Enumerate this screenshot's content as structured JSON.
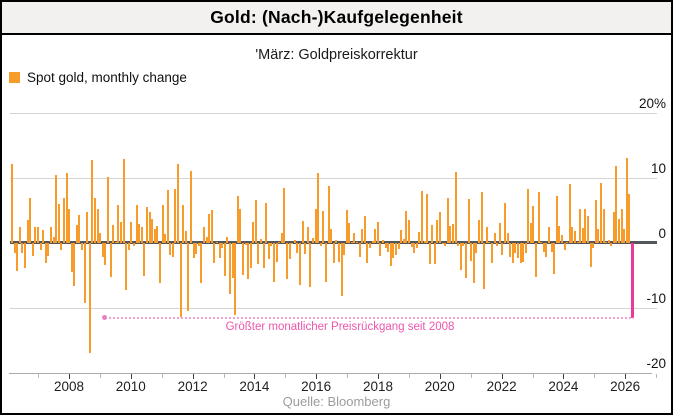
{
  "header": {
    "title": "Gold: (Nach-)Kaufgelegenheit",
    "subtitle": "'März: Goldpreiskorrektur"
  },
  "legend": {
    "label": "Spot gold, monthly change"
  },
  "annotation": {
    "text": "Größter monatlicher Preisrückgang seit 2008",
    "level_pct": -11.6
  },
  "source": {
    "label": "Quelle: Bloomberg"
  },
  "colors": {
    "bar_orange": "#f79b2a",
    "bar_highlight_magenta": "#ea3a9c",
    "annotation_pink": "#ee55ac",
    "dotted_line_pink": "#f0a2d2",
    "zero_line": "#53565a",
    "gridline": "#d4d4d4",
    "title_band_bg": "#f2f1ef",
    "source_gray": "#9c9c9c"
  },
  "chart_data": {
    "type": "bar",
    "title": "Gold: (Nach-)Kaufgelegenheit",
    "subtitle": "'März: Goldpreiskorrektur",
    "series_name": "Spot gold, monthly change",
    "unit": "percent monthly change",
    "grid": "horizontal",
    "legend_position": "top-left",
    "axis_side": "right",
    "ylim": [
      -20,
      20
    ],
    "y_ticks": [
      {
        "label": "20%",
        "value": 20
      },
      {
        "label": "10",
        "value": 10
      },
      {
        "label": "0",
        "value": 0
      },
      {
        "label": "-10",
        "value": -10
      },
      {
        "label": "-20",
        "value": -20
      }
    ],
    "x_tick_years_labeled": [
      2008,
      2010,
      2012,
      2014,
      2016,
      2018,
      2020,
      2022,
      2024,
      2026
    ],
    "x_tick_years_minor": [
      2007,
      2009,
      2011,
      2013,
      2015,
      2017,
      2019,
      2021,
      2023,
      2025,
      2027
    ],
    "start_month": "2006-04",
    "end_month": "2026-03",
    "highlight": {
      "month": "2026-03",
      "index": 239,
      "value": -11.6,
      "note": "Größter monatlicher Preisrückgang seit 2008"
    },
    "annotation_line": {
      "level_pct": -11.6,
      "start_index": 36
    },
    "values": [
      12.2,
      -1.6,
      -4.3,
      2.4,
      -1.5,
      -3.9,
      3.6,
      6.9,
      -2.0,
      2.4,
      2.4,
      -1.0,
      2.0,
      -3.0,
      -2.0,
      2.4,
      1.0,
      10.4,
      6.0,
      -1.0,
      6.9,
      10.8,
      5.2,
      -4.4,
      -6.6,
      2.7,
      4.3,
      -1.0,
      -9.2,
      4.7,
      -16.9,
      12.8,
      7.0,
      5.3,
      1.5,
      -2.2,
      -3.4,
      10.1,
      -5.3,
      2.7,
      0.2,
      5.9,
      3.2,
      12.9,
      -7.2,
      -1.1,
      3.3,
      -0.4,
      5.9,
      3.0,
      2.4,
      -5.0,
      5.6,
      4.8,
      3.7,
      2.1,
      2.6,
      -6.2,
      5.9,
      1.4,
      8.1,
      -1.9,
      -2.2,
      8.3,
      12.2,
      -11.3,
      5.8,
      1.9,
      -10.5,
      11.1,
      -2.3,
      -1.7,
      -0.5,
      -6.2,
      2.5,
      1.0,
      4.5,
      5.1,
      -3.1,
      0.2,
      -2.3,
      -0.7,
      -5.1,
      1.0,
      -7.8,
      -5.4,
      -11.0,
      7.3,
      5.3,
      -4.9,
      -0.3,
      -5.5,
      -3.8,
      3.2,
      6.6,
      -3.2,
      0.6,
      -3.9,
      6.1,
      -2.4,
      -0.4,
      -6.0,
      -2.9,
      0.1,
      1.5,
      8.4,
      -5.5,
      -2.4,
      -0.1,
      0.5,
      -1.5,
      -6.5,
      3.4,
      -1.7,
      2.4,
      -6.8,
      0.7,
      5.3,
      10.8,
      -0.5,
      4.9,
      -6.0,
      8.8,
      2.2,
      -3.1,
      0.5,
      -2.9,
      -8.1,
      -1.8,
      5.1,
      3.1,
      0.1,
      1.6,
      0.0,
      -2.1,
      2.2,
      4.1,
      -3.1,
      -0.7,
      0.3,
      2.2,
      3.2,
      -2.0,
      0.5,
      -0.7,
      -1.3,
      -3.5,
      -2.3,
      -1.9,
      -0.9,
      2.0,
      0.6,
      4.9,
      3.5,
      -0.6,
      -1.6,
      -0.7,
      1.7,
      8.0,
      0.3,
      7.5,
      -3.2,
      2.8,
      -3.2,
      3.6,
      4.7,
      -0.2,
      -0.5,
      6.9,
      2.6,
      2.9,
      10.9,
      -0.4,
      -4.2,
      -0.4,
      -5.4,
      6.8,
      -2.7,
      -6.1,
      -1.5,
      3.6,
      7.8,
      -7.0,
      2.5,
      0.0,
      -3.1,
      1.5,
      -0.5,
      3.1,
      -1.8,
      6.2,
      1.5,
      -2.1,
      -3.1,
      -1.6,
      -2.3,
      -3.1,
      -2.9,
      -1.6,
      8.3,
      3.1,
      5.7,
      -5.3,
      7.8,
      0.1,
      -1.4,
      -2.2,
      2.4,
      -1.3,
      -4.7,
      7.3,
      2.6,
      1.3,
      -1.1,
      0.2,
      9.1,
      2.5,
      1.8,
      0.0,
      5.2,
      2.3,
      5.2,
      4.2,
      -3.7,
      -0.7,
      6.6,
      2.1,
      9.3,
      5.3,
      0.0,
      0.4,
      -0.4,
      4.8,
      11.9,
      3.7,
      5.2,
      2.2,
      13.1,
      7.5,
      -11.6
    ]
  }
}
